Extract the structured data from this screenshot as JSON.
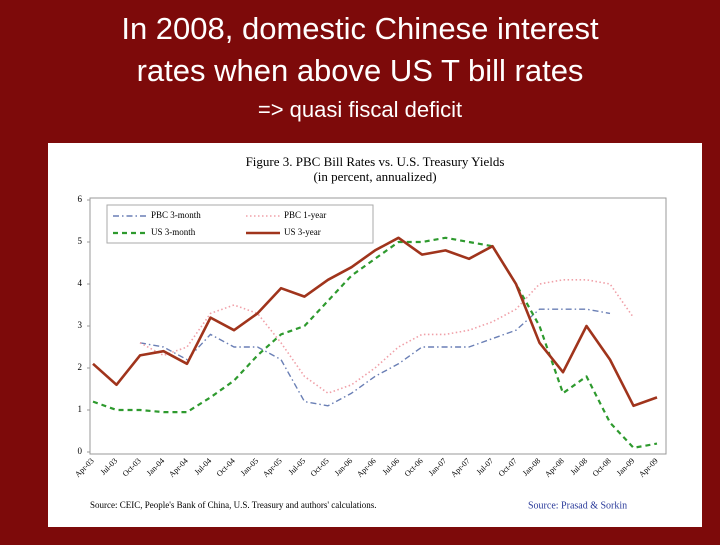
{
  "slide": {
    "title_lines": [
      "In 2008, domestic Chinese interest",
      "rates when above US T bill rates"
    ],
    "subtitle": "=> quasi fiscal deficit"
  },
  "chart_data": {
    "type": "line",
    "title": "Figure 3. PBC Bill Rates vs. U.S. Treasury Yields",
    "subtitle": "(in percent, annualized)",
    "source": "Source: CEIC, People's Bank of China, U.S. Treasury and authors' calculations.",
    "credit": "Source: Prasad & Sorkin",
    "categories": [
      "Apr-03",
      "Jul-03",
      "Oct-03",
      "Jan-04",
      "Apr-04",
      "Jul-04",
      "Oct-04",
      "Jan-05",
      "Apr-05",
      "Jul-05",
      "Oct-05",
      "Jan-06",
      "Apr-06",
      "Jul-06",
      "Oct-06",
      "Jan-07",
      "Apr-07",
      "Jul-07",
      "Oct-07",
      "Jan-08",
      "Apr-08",
      "Jul-08",
      "Oct-08",
      "Jan-09",
      "Apr-09"
    ],
    "series": [
      {
        "name": "PBC 3-month",
        "color": "#6a7fb5",
        "line_style": "dashdot",
        "values": [
          null,
          null,
          2.6,
          2.5,
          2.2,
          2.8,
          2.5,
          2.5,
          2.2,
          1.2,
          1.1,
          1.4,
          1.8,
          2.1,
          2.5,
          2.5,
          2.5,
          2.7,
          2.9,
          3.4,
          3.4,
          3.4,
          3.3,
          null,
          null
        ]
      },
      {
        "name": "PBC 1-year",
        "color": "#f0a0a8",
        "line_style": "dotted",
        "values": [
          null,
          null,
          2.6,
          2.3,
          2.5,
          3.3,
          3.5,
          3.3,
          2.6,
          1.8,
          1.4,
          1.6,
          2.0,
          2.5,
          2.8,
          2.8,
          2.9,
          3.1,
          3.4,
          4.0,
          4.1,
          4.1,
          4.0,
          3.2,
          null
        ]
      },
      {
        "name": "US 3-month",
        "color": "#2e9a2e",
        "line_style": "dashed",
        "values": [
          1.2,
          1.0,
          1.0,
          0.95,
          0.95,
          1.3,
          1.7,
          2.3,
          2.8,
          3.0,
          3.6,
          4.2,
          4.6,
          5.0,
          5.0,
          5.1,
          5.0,
          4.9,
          4.0,
          3.0,
          1.4,
          1.8,
          0.7,
          0.1,
          0.2
        ]
      },
      {
        "name": "US 3-year",
        "color": "#a0341c",
        "line_style": "solid",
        "values": [
          2.1,
          1.6,
          2.3,
          2.4,
          2.1,
          3.2,
          2.9,
          3.3,
          3.9,
          3.7,
          4.1,
          4.4,
          4.8,
          5.1,
          4.7,
          4.8,
          4.6,
          4.9,
          4.0,
          2.6,
          1.9,
          3.0,
          2.2,
          1.1,
          1.3
        ]
      }
    ],
    "ylim": [
      0,
      6
    ],
    "yticks": [
      0,
      1,
      2,
      3,
      4,
      5,
      6
    ],
    "grid": false
  }
}
